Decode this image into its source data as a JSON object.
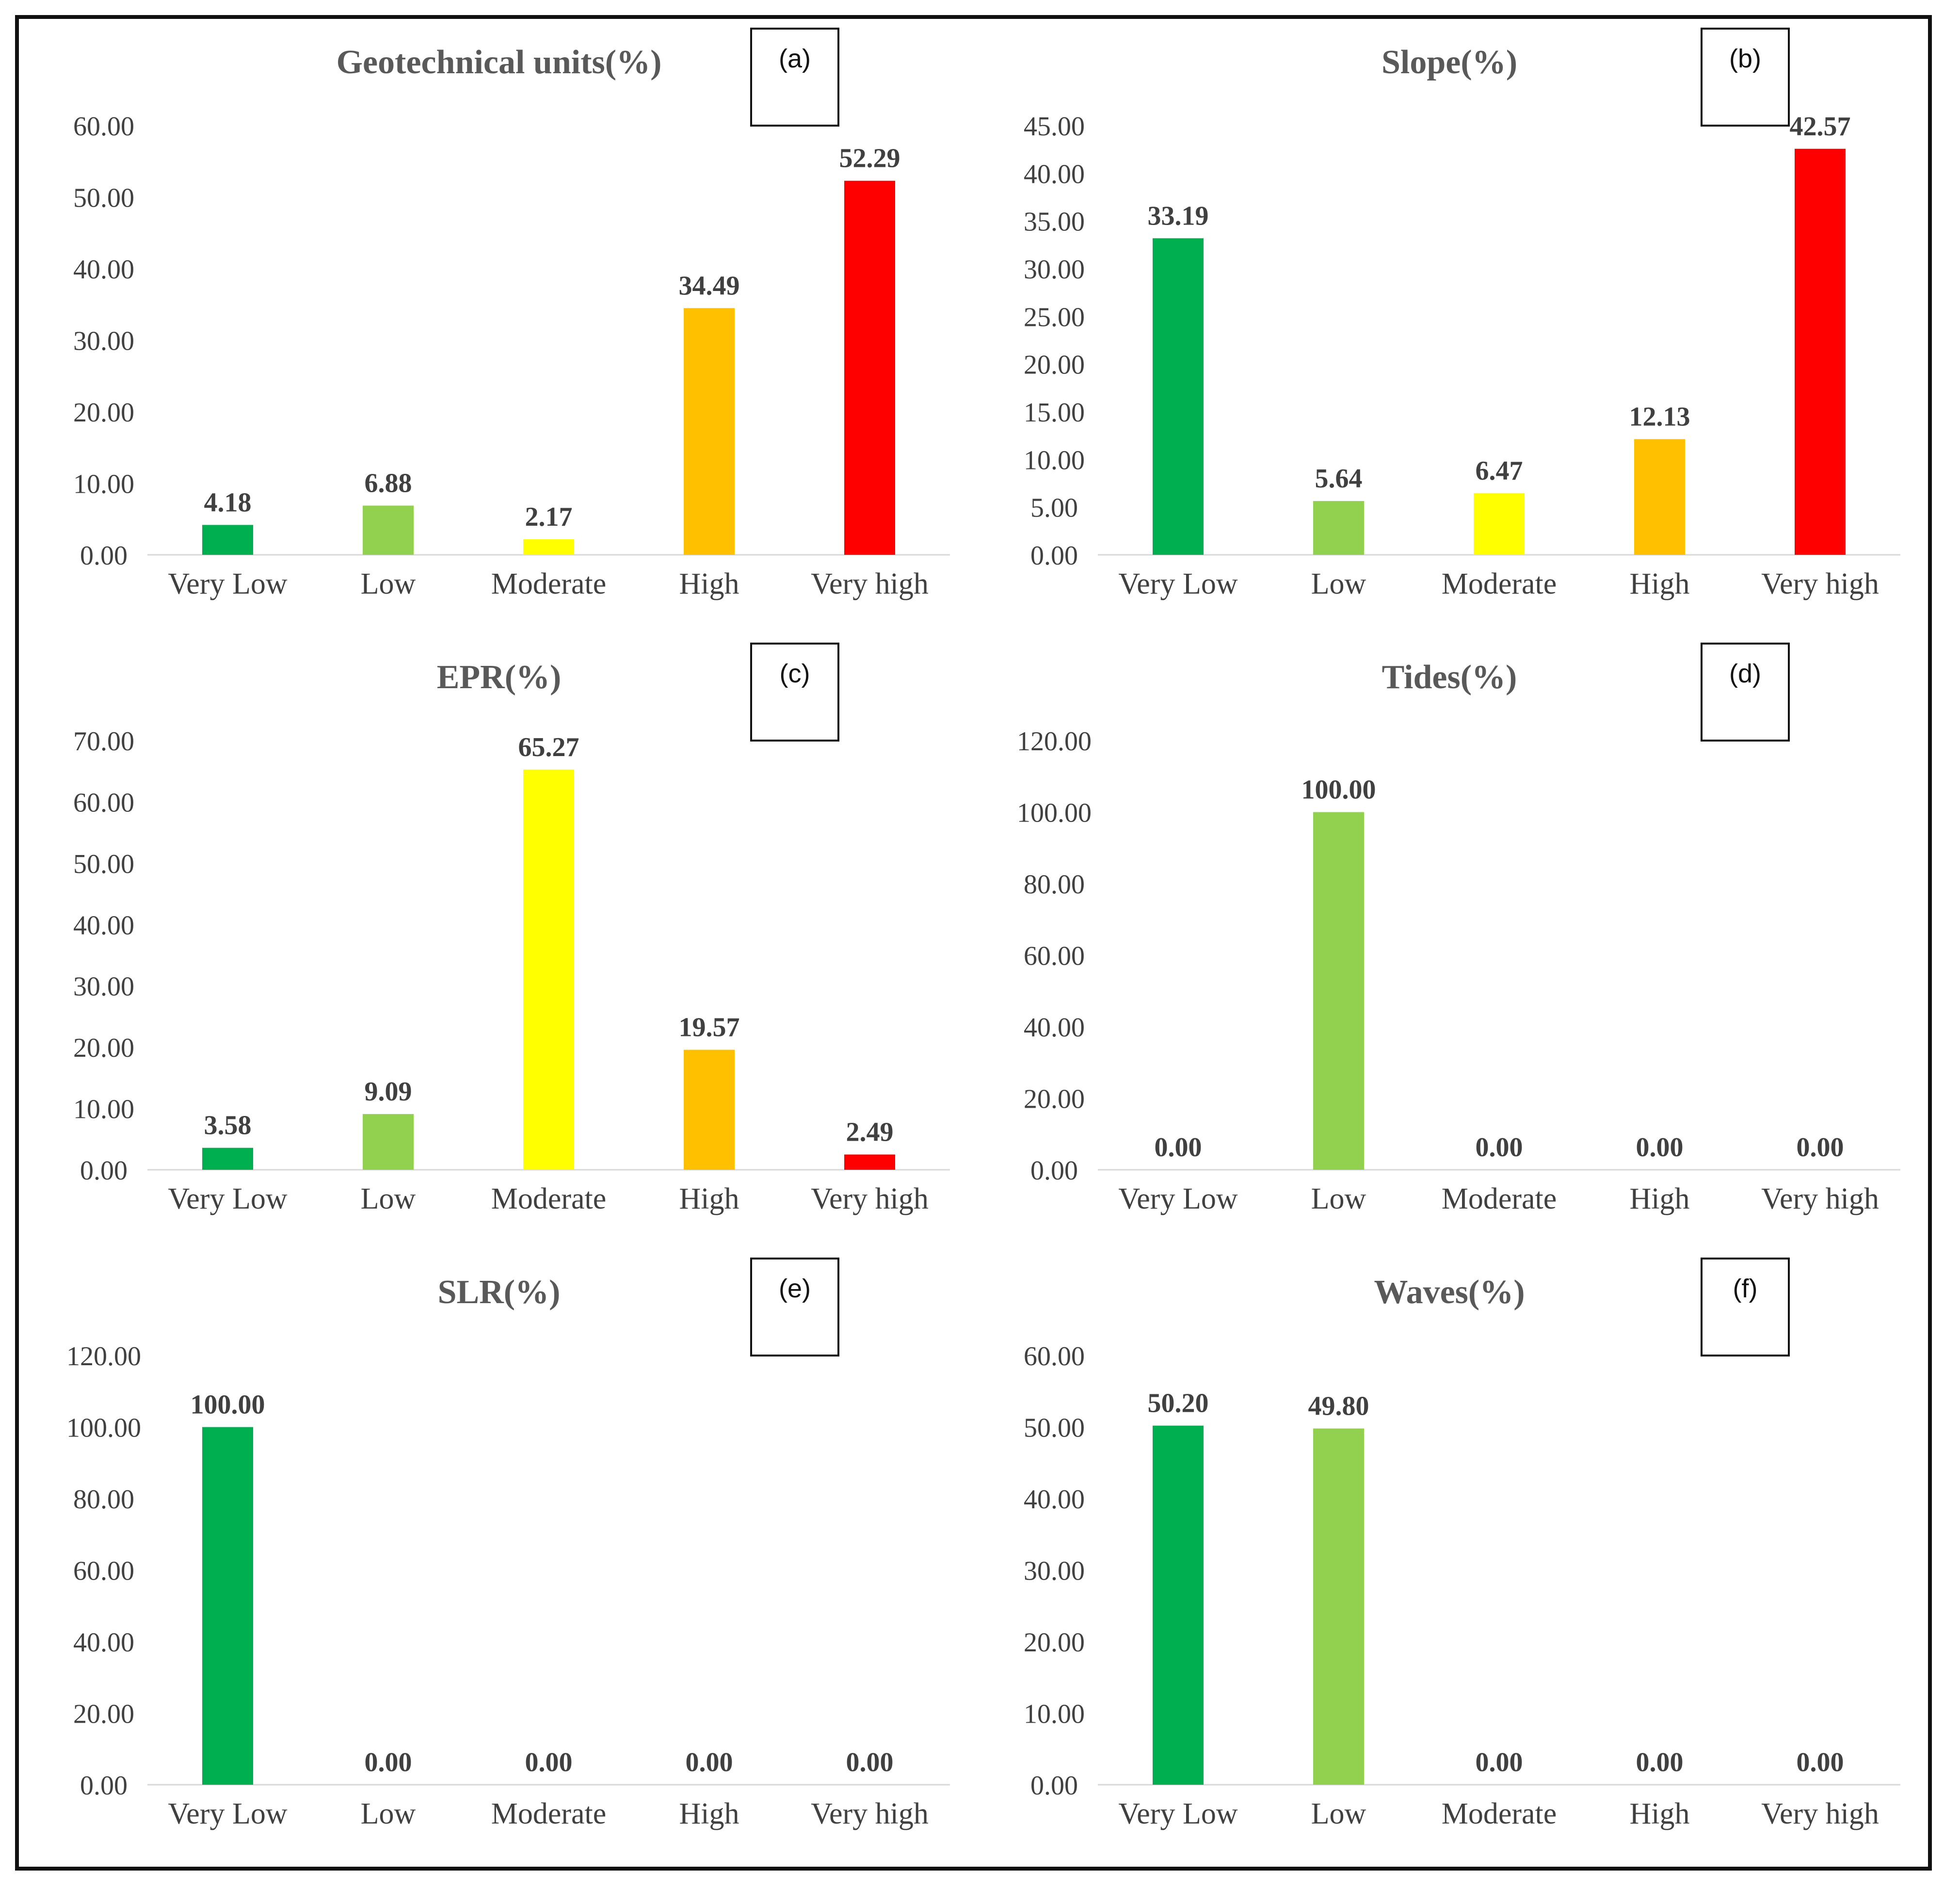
{
  "chart_data": [
    {
      "type": "bar",
      "tag": "(a)",
      "title": "Geotechnical units(%)",
      "categories": [
        "Very Low",
        "Low",
        "Moderate",
        "High",
        "Very high"
      ],
      "values": [
        4.18,
        6.88,
        2.17,
        34.49,
        52.29
      ],
      "value_labels": [
        "4.18",
        "6.88",
        "2.17",
        "34.49",
        "52.29"
      ],
      "ylim": [
        0,
        60
      ],
      "yticks": [
        "0.00",
        "10.00",
        "20.00",
        "30.00",
        "40.00",
        "50.00",
        "60.00"
      ],
      "xlabel": "",
      "ylabel": "",
      "colors": [
        "#00b050",
        "#92d050",
        "#ffff00",
        "#ffc000",
        "#ff0000"
      ]
    },
    {
      "type": "bar",
      "tag": "(b)",
      "title": "Slope(%)",
      "categories": [
        "Very Low",
        "Low",
        "Moderate",
        "High",
        "Very high"
      ],
      "values": [
        33.19,
        5.64,
        6.47,
        12.13,
        42.57
      ],
      "value_labels": [
        "33.19",
        "5.64",
        "6.47",
        "12.13",
        "42.57"
      ],
      "ylim": [
        0,
        45
      ],
      "yticks": [
        "0.00",
        "5.00",
        "10.00",
        "15.00",
        "20.00",
        "25.00",
        "30.00",
        "35.00",
        "40.00",
        "45.00"
      ],
      "xlabel": "",
      "ylabel": "",
      "colors": [
        "#00b050",
        "#92d050",
        "#ffff00",
        "#ffc000",
        "#ff0000"
      ]
    },
    {
      "type": "bar",
      "tag": "(c)",
      "title": "EPR(%)",
      "categories": [
        "Very Low",
        "Low",
        "Moderate",
        "High",
        "Very high"
      ],
      "values": [
        3.58,
        9.09,
        65.27,
        19.57,
        2.49
      ],
      "value_labels": [
        "3.58",
        "9.09",
        "65.27",
        "19.57",
        "2.49"
      ],
      "ylim": [
        0,
        70
      ],
      "yticks": [
        "0.00",
        "10.00",
        "20.00",
        "30.00",
        "40.00",
        "50.00",
        "60.00",
        "70.00"
      ],
      "xlabel": "",
      "ylabel": "",
      "colors": [
        "#00b050",
        "#92d050",
        "#ffff00",
        "#ffc000",
        "#ff0000"
      ]
    },
    {
      "type": "bar",
      "tag": "(d)",
      "title": "Tides(%)",
      "categories": [
        "Very Low",
        "Low",
        "Moderate",
        "High",
        "Very high"
      ],
      "values": [
        0,
        100,
        0,
        0,
        0
      ],
      "value_labels": [
        "0.00",
        "100.00",
        "0.00",
        "0.00",
        "0.00"
      ],
      "ylim": [
        0,
        120
      ],
      "yticks": [
        "0.00",
        "20.00",
        "40.00",
        "60.00",
        "80.00",
        "100.00",
        "120.00"
      ],
      "xlabel": "",
      "ylabel": "",
      "colors": [
        "#00b050",
        "#92d050",
        "#ffff00",
        "#ffc000",
        "#ff0000"
      ]
    },
    {
      "type": "bar",
      "tag": "(e)",
      "title": "SLR(%)",
      "categories": [
        "Very Low",
        "Low",
        "Moderate",
        "High",
        "Very high"
      ],
      "values": [
        100,
        0,
        0,
        0,
        0
      ],
      "value_labels": [
        "100.00",
        "0.00",
        "0.00",
        "0.00",
        "0.00"
      ],
      "ylim": [
        0,
        120
      ],
      "yticks": [
        "0.00",
        "20.00",
        "40.00",
        "60.00",
        "80.00",
        "100.00",
        "120.00"
      ],
      "xlabel": "",
      "ylabel": "",
      "colors": [
        "#00b050",
        "#92d050",
        "#ffff00",
        "#ffc000",
        "#ff0000"
      ]
    },
    {
      "type": "bar",
      "tag": "(f)",
      "title": "Waves(%)",
      "categories": [
        "Very Low",
        "Low",
        "Moderate",
        "High",
        "Very high"
      ],
      "values": [
        50.2,
        49.8,
        0,
        0,
        0
      ],
      "value_labels": [
        "50.20",
        "49.80",
        "0.00",
        "0.00",
        "0.00"
      ],
      "ylim": [
        0,
        60
      ],
      "yticks": [
        "0.00",
        "10.00",
        "20.00",
        "30.00",
        "40.00",
        "50.00",
        "60.00"
      ],
      "xlabel": "",
      "ylabel": "",
      "colors": [
        "#00b050",
        "#92d050",
        "#ffff00",
        "#ffc000",
        "#ff0000"
      ]
    }
  ]
}
